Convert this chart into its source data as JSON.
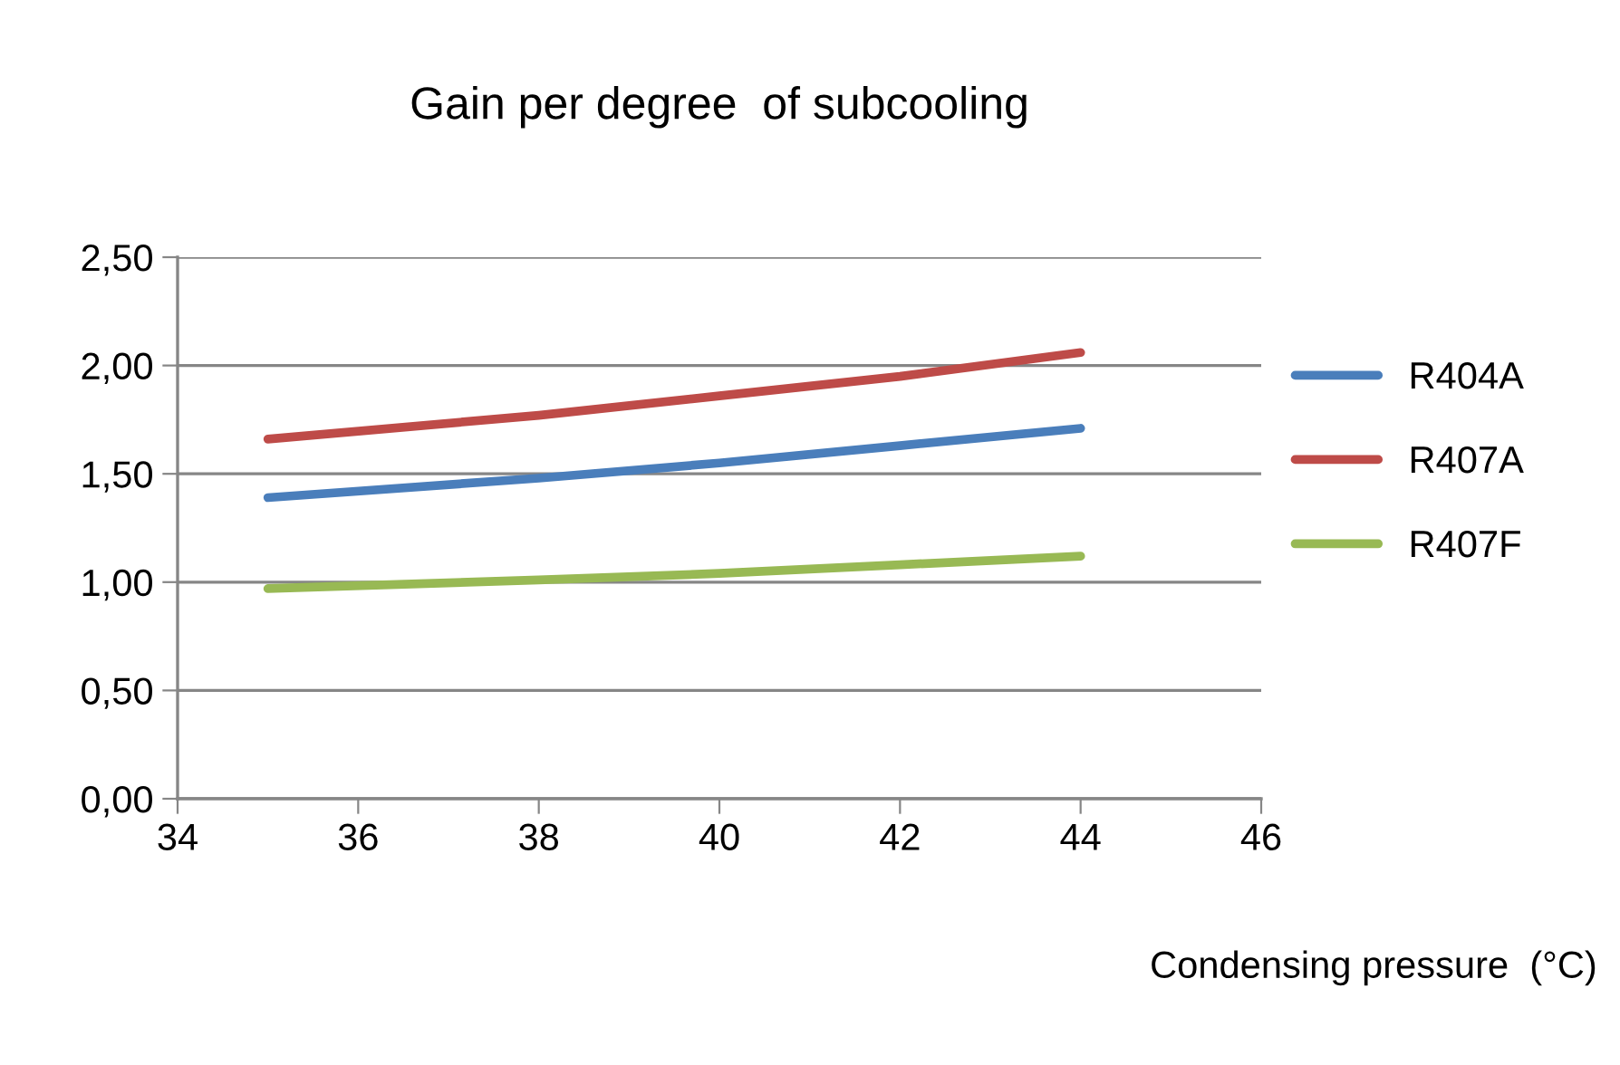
{
  "chart_data": {
    "type": "line",
    "title": "Gain per degree  of subcooling",
    "xlabel": "Condensing pressure  (°C)",
    "x": [
      35,
      38,
      40,
      42,
      44
    ],
    "series": [
      {
        "name": "R404A",
        "color": "#4a7ebb",
        "values": [
          1.39,
          1.48,
          1.55,
          1.63,
          1.71
        ]
      },
      {
        "name": "R407A",
        "color": "#be4b48",
        "values": [
          1.66,
          1.77,
          1.86,
          1.95,
          2.06
        ]
      },
      {
        "name": "R407F",
        "color": "#98b954",
        "values": [
          0.97,
          1.01,
          1.04,
          1.08,
          1.12
        ]
      }
    ],
    "xlim": [
      34,
      46
    ],
    "xticks": [
      34,
      36,
      38,
      40,
      42,
      44,
      46
    ],
    "ylim": [
      0,
      2.5
    ],
    "yticks": [
      {
        "value": 0,
        "label": "0,00"
      },
      {
        "value": 0.5,
        "label": "0,50"
      },
      {
        "value": 1.0,
        "label": "1,00"
      },
      {
        "value": 1.5,
        "label": "1,50"
      },
      {
        "value": 2.0,
        "label": "2,00"
      },
      {
        "value": 2.5,
        "label": "2,50"
      }
    ],
    "grid": "y",
    "legend": "right",
    "marker": "none",
    "line_style": "solid"
  }
}
